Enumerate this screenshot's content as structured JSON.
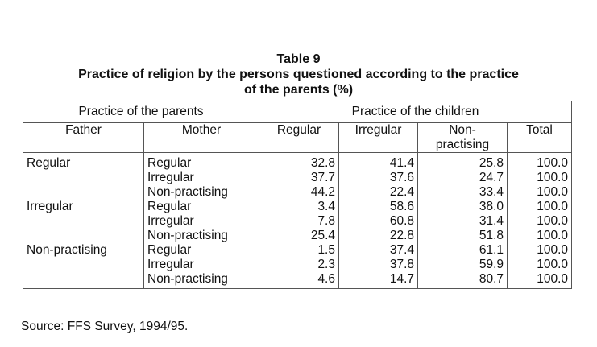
{
  "title": {
    "line1": "Table 9",
    "line2": "Practice of religion by the persons questioned according to the practice",
    "line3": "of the parents (%)"
  },
  "table": {
    "group_headers": [
      "Practice of the parents",
      "Practice of the children"
    ],
    "columns": [
      "Father",
      "Mother",
      "Regular",
      "Irregular",
      "Non-practising",
      "Total"
    ],
    "rows": [
      {
        "father": "Regular",
        "mother": "Regular",
        "regular": "32.8",
        "irregular": "41.4",
        "non_practising": "25.8",
        "total": "100.0"
      },
      {
        "father": "",
        "mother": "Irregular",
        "regular": "37.7",
        "irregular": "37.6",
        "non_practising": "24.7",
        "total": "100.0"
      },
      {
        "father": "",
        "mother": "Non-practising",
        "regular": "44.2",
        "irregular": "22.4",
        "non_practising": "33.4",
        "total": "100.0"
      },
      {
        "father": "Irregular",
        "mother": "Regular",
        "regular": "3.4",
        "irregular": "58.6",
        "non_practising": "38.0",
        "total": "100.0"
      },
      {
        "father": "",
        "mother": "Irregular",
        "regular": "7.8",
        "irregular": "60.8",
        "non_practising": "31.4",
        "total": "100.0"
      },
      {
        "father": "",
        "mother": "Non-practising",
        "regular": "25.4",
        "irregular": "22.8",
        "non_practising": "51.8",
        "total": "100.0"
      },
      {
        "father": "Non-practising",
        "mother": "Regular",
        "regular": "1.5",
        "irregular": "37.4",
        "non_practising": "61.1",
        "total": "100.0"
      },
      {
        "father": "",
        "mother": "Irregular",
        "regular": "2.3",
        "irregular": "37.8",
        "non_practising": "59.9",
        "total": "100.0"
      },
      {
        "father": "",
        "mother": "Non-practising",
        "regular": "4.6",
        "irregular": "14.7",
        "non_practising": "80.7",
        "total": "100.0"
      }
    ]
  },
  "source": "Source: FFS Survey, 1994/95."
}
